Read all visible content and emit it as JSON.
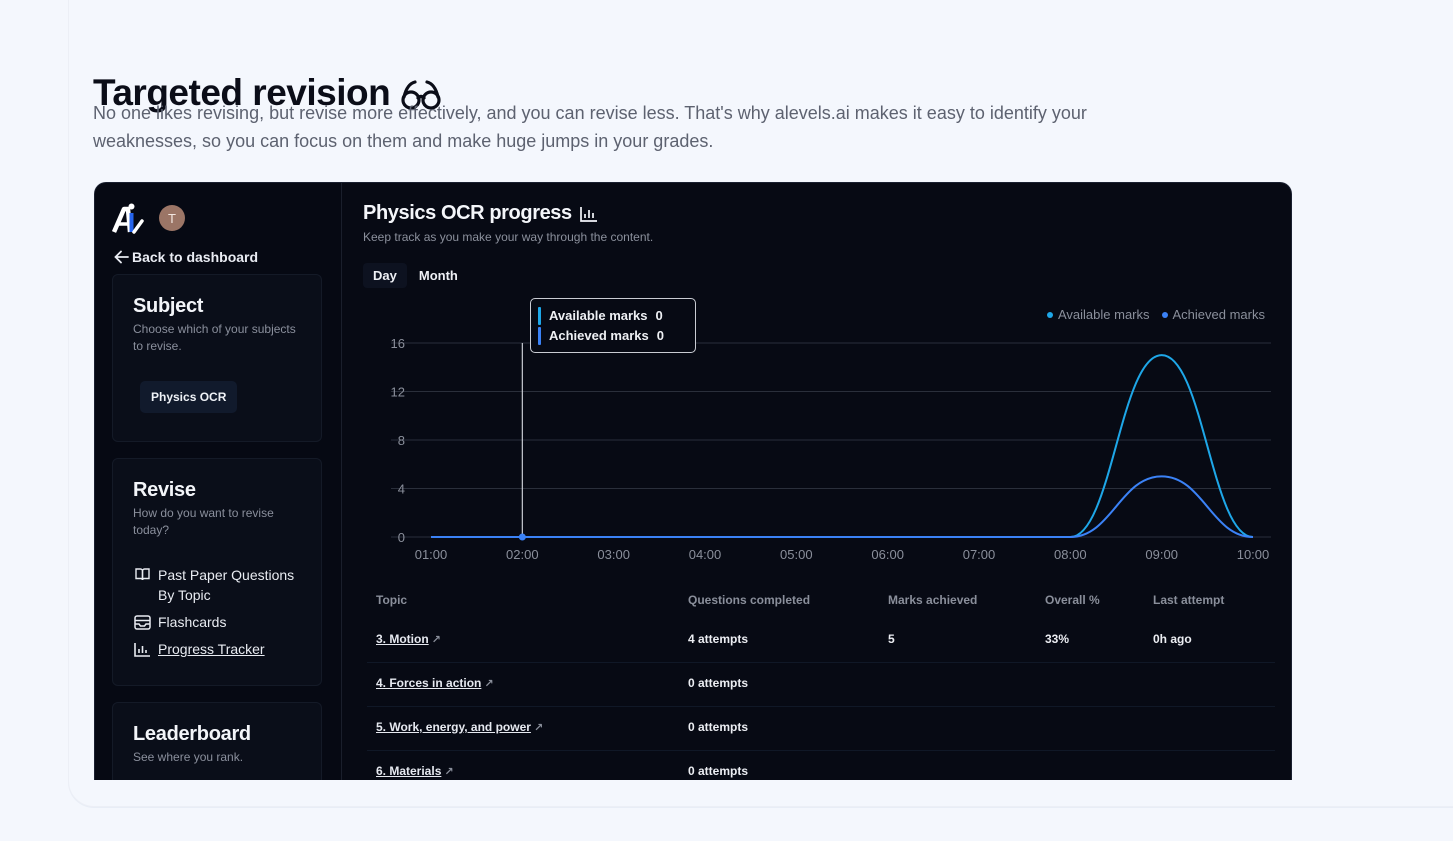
{
  "section": {
    "heading": "Targeted revision",
    "heading_icon": "glasses-icon",
    "description": "No one likes revising, but revise more effectively, and you can revise less. That's why alevels.ai makes it easy to identify your weaknesses, so you can focus on them and make huge jumps in your grades."
  },
  "sidebar": {
    "logo": "Ai",
    "avatar_initial": "T",
    "back_label": "Back to dashboard",
    "subject_panel": {
      "title": "Subject",
      "subtitle": "Choose which of your subjects to revise.",
      "chip": "Physics OCR"
    },
    "revise_panel": {
      "title": "Revise",
      "subtitle": "How do you want to revise today?",
      "items": [
        {
          "label": "Past Paper Questions",
          "label2": "By Topic",
          "icon": "book-open-icon"
        },
        {
          "label": "Flashcards",
          "icon": "inbox-card-icon"
        },
        {
          "label": "Progress Tracker",
          "icon": "bar-chart-icon",
          "active": true
        }
      ]
    },
    "leaderboard_panel": {
      "title": "Leaderboard",
      "subtitle": "See where you rank."
    }
  },
  "main": {
    "title": "Physics OCR progress",
    "title_icon": "bar-chart-icon",
    "subtitle": "Keep track as you make your way through the content.",
    "tabs": [
      {
        "label": "Day",
        "active": true
      },
      {
        "label": "Month",
        "active": false
      }
    ],
    "tooltip": {
      "rows": [
        {
          "label": "Available marks",
          "value": "0"
        },
        {
          "label": "Achieved marks",
          "value": "0"
        }
      ]
    },
    "legend": [
      {
        "label": "Available marks",
        "color": "#1ea7e8"
      },
      {
        "label": "Achieved marks",
        "color": "#3b82f6"
      }
    ],
    "table": {
      "headers": [
        "Topic",
        "Questions completed",
        "Marks achieved",
        "Overall %",
        "Last attempt"
      ],
      "rows": [
        {
          "topic": "3. Motion",
          "questions": "4 attempts",
          "marks": "5",
          "overall": "33%",
          "last": "0h ago"
        },
        {
          "topic": "4. Forces in action",
          "questions": "0 attempts",
          "marks": "",
          "overall": "",
          "last": ""
        },
        {
          "topic": "5. Work, energy, and power",
          "questions": "0 attempts",
          "marks": "",
          "overall": "",
          "last": ""
        },
        {
          "topic": "6. Materials",
          "questions": "0 attempts",
          "marks": "",
          "overall": "",
          "last": ""
        }
      ]
    }
  },
  "chart_data": {
    "type": "line",
    "title": "Physics OCR progress",
    "x": [
      "01:00",
      "02:00",
      "03:00",
      "04:00",
      "05:00",
      "06:00",
      "07:00",
      "08:00",
      "09:00",
      "10:00"
    ],
    "series": [
      {
        "name": "Available marks",
        "color": "#1ea7e8",
        "values": [
          0,
          0,
          0,
          0,
          0,
          0,
          0,
          0,
          15,
          0
        ]
      },
      {
        "name": "Achieved marks",
        "color": "#3b82f6",
        "values": [
          0,
          0,
          0,
          0,
          0,
          0,
          0,
          0,
          5,
          0
        ]
      }
    ],
    "yticks": [
      0,
      4,
      8,
      12,
      16
    ],
    "ylim": [
      0,
      16
    ],
    "grid": true,
    "legend_position": "top-right",
    "hover": {
      "x": "02:00",
      "Available marks": 0,
      "Achieved marks": 0
    }
  }
}
